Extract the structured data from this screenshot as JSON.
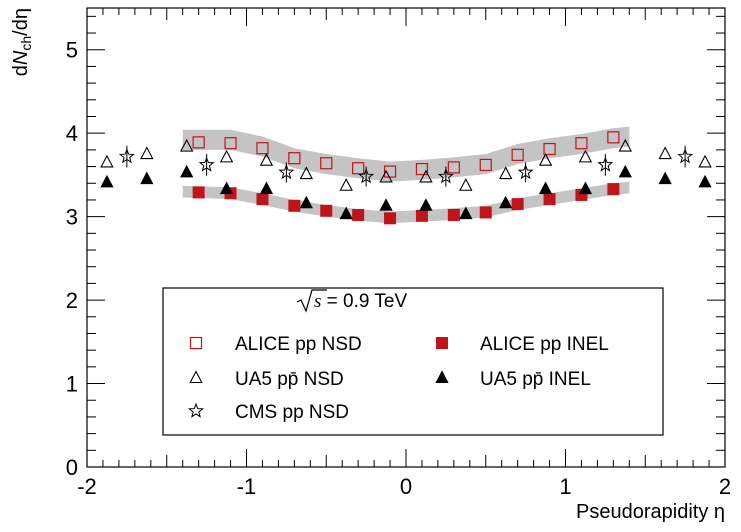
{
  "chart_data": {
    "type": "scatter",
    "xlabel": "Pseudorapidity η",
    "ylabel": "dN_ch/dη",
    "xlim": [
      -2.0,
      2.0
    ],
    "ylim": [
      0,
      5.5
    ],
    "x_ticks": [
      -2,
      -1,
      0,
      1,
      2
    ],
    "y_ticks": [
      0,
      1,
      2,
      3,
      4,
      5
    ],
    "grid": false,
    "legend_placement": "bottom-center",
    "energy_label": "√s = 0.9 TeV",
    "colors": {
      "alice": "#c0141b",
      "band": "#c4c4c4",
      "ua5": "#000000",
      "cms": "#000000"
    },
    "series": [
      {
        "name": "ALICE pp NSD",
        "marker": "open-square",
        "x": [
          -1.3,
          -1.1,
          -0.9,
          -0.7,
          -0.5,
          -0.3,
          -0.1,
          0.1,
          0.3,
          0.5,
          0.7,
          0.9,
          1.1,
          1.3
        ],
        "y": [
          3.89,
          3.88,
          3.82,
          3.7,
          3.64,
          3.58,
          3.54,
          3.57,
          3.59,
          3.62,
          3.74,
          3.81,
          3.88,
          3.95
        ],
        "band": [
          [
            -1.4,
            3.92
          ],
          [
            -1.1,
            3.92
          ],
          [
            -0.9,
            3.84
          ],
          [
            -0.7,
            3.7
          ],
          [
            -0.5,
            3.63
          ],
          [
            -0.3,
            3.58
          ],
          [
            -0.1,
            3.54
          ],
          [
            0.1,
            3.56
          ],
          [
            0.3,
            3.59
          ],
          [
            0.5,
            3.63
          ],
          [
            0.7,
            3.75
          ],
          [
            0.9,
            3.82
          ],
          [
            1.1,
            3.87
          ],
          [
            1.3,
            3.94
          ],
          [
            1.4,
            3.96
          ]
        ],
        "band_halfwidth": 0.12
      },
      {
        "name": "ALICE pp INEL",
        "marker": "filled-square",
        "x": [
          -1.3,
          -1.1,
          -0.9,
          -0.7,
          -0.5,
          -0.3,
          -0.1,
          0.1,
          0.3,
          0.5,
          0.7,
          0.9,
          1.1,
          1.3
        ],
        "y": [
          3.29,
          3.28,
          3.21,
          3.13,
          3.07,
          3.02,
          2.98,
          3.01,
          3.02,
          3.05,
          3.15,
          3.21,
          3.26,
          3.33
        ],
        "band": [
          [
            -1.4,
            3.3
          ],
          [
            -1.1,
            3.28
          ],
          [
            -0.9,
            3.21
          ],
          [
            -0.7,
            3.13
          ],
          [
            -0.5,
            3.07
          ],
          [
            -0.3,
            3.02
          ],
          [
            -0.1,
            2.99
          ],
          [
            0.1,
            3.01
          ],
          [
            0.3,
            3.03
          ],
          [
            0.5,
            3.06
          ],
          [
            0.7,
            3.15
          ],
          [
            0.9,
            3.21
          ],
          [
            1.1,
            3.27
          ],
          [
            1.3,
            3.33
          ],
          [
            1.4,
            3.35
          ]
        ],
        "band_halfwidth": 0.07
      },
      {
        "name": "UA5 pp̄ NSD",
        "marker": "open-triangle",
        "x": [
          -1.875,
          -1.625,
          -1.375,
          -1.125,
          -0.875,
          -0.625,
          -0.375,
          -0.125,
          0.125,
          0.375,
          0.625,
          0.875,
          1.125,
          1.375,
          1.625,
          1.875
        ],
        "y": [
          3.65,
          3.75,
          3.84,
          3.71,
          3.67,
          3.51,
          3.37,
          3.47,
          3.47,
          3.37,
          3.51,
          3.67,
          3.71,
          3.84,
          3.75,
          3.65
        ]
      },
      {
        "name": "UA5 pp̄ INEL",
        "marker": "filled-triangle",
        "x": [
          -1.875,
          -1.625,
          -1.375,
          -1.125,
          -0.875,
          -0.625,
          -0.375,
          -0.125,
          0.125,
          0.375,
          0.625,
          0.875,
          1.125,
          1.375,
          1.625,
          1.875
        ],
        "y": [
          3.41,
          3.45,
          3.53,
          3.33,
          3.33,
          3.16,
          3.03,
          3.13,
          3.13,
          3.03,
          3.16,
          3.33,
          3.33,
          3.53,
          3.45,
          3.41
        ]
      },
      {
        "name": "CMS pp NSD",
        "marker": "open-star",
        "x": [
          -1.75,
          -1.25,
          -0.75,
          -0.25,
          0.25,
          0.75,
          1.25,
          1.75
        ],
        "y": [
          3.72,
          3.62,
          3.53,
          3.48,
          3.48,
          3.53,
          3.62,
          3.72
        ],
        "yerr": [
          0.13,
          0.13,
          0.12,
          0.12,
          0.12,
          0.12,
          0.13,
          0.13
        ]
      }
    ]
  }
}
